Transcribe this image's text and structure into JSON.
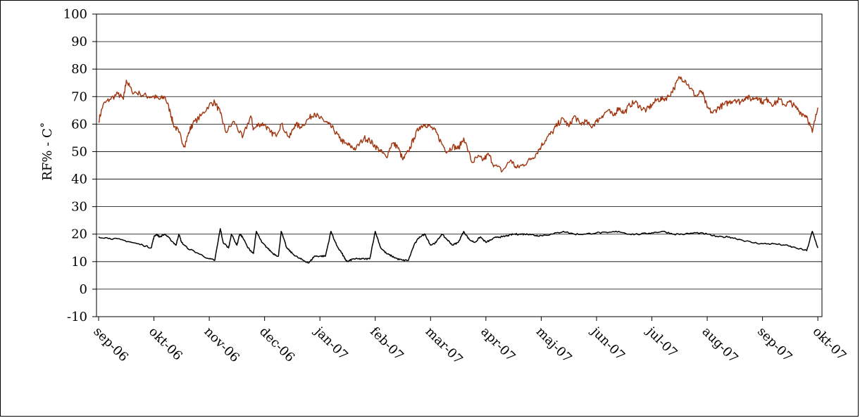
{
  "chart_data": {
    "type": "line",
    "title": "",
    "xlabel": "",
    "ylabel": "RF% - C˚",
    "ylim": [
      -10,
      100
    ],
    "yticks": [
      -10,
      0,
      10,
      20,
      30,
      40,
      50,
      60,
      70,
      80,
      90,
      100
    ],
    "grid": "horizontal",
    "legend": "none",
    "x_tick_labels": [
      "sep-06",
      "okt-06",
      "nov-06",
      "dec-06",
      "jan-07",
      "feb-07",
      "mar-07",
      "apr-07",
      "maj-07",
      "jun-07",
      "jul-07",
      "aug-07",
      "sep-07",
      "okt-07"
    ],
    "x_unit": "month index (0 = sep-06, 13 = okt-07)",
    "xlim": [
      -0.05,
      13.02
    ],
    "series": [
      {
        "color": "#a0350f",
        "description_of_role": "relative humidity (RF%)",
        "x": [
          0.0,
          0.08,
          0.2,
          0.35,
          0.45,
          0.5,
          0.6,
          0.75,
          0.9,
          1.0,
          1.1,
          1.2,
          1.3,
          1.35,
          1.45,
          1.55,
          1.65,
          1.7,
          1.85,
          2.0,
          2.1,
          2.2,
          2.3,
          2.45,
          2.6,
          2.75,
          2.8,
          2.9,
          3.0,
          3.1,
          3.2,
          3.3,
          3.45,
          3.55,
          3.65,
          3.8,
          3.9,
          4.0,
          4.1,
          4.15,
          4.25,
          4.35,
          4.45,
          4.55,
          4.65,
          4.8,
          4.9,
          5.0,
          5.1,
          5.2,
          5.3,
          5.4,
          5.5,
          5.6,
          5.7,
          5.8,
          5.9,
          6.0,
          6.1,
          6.2,
          6.3,
          6.4,
          6.5,
          6.6,
          6.75,
          6.85,
          6.95,
          7.05,
          7.15,
          7.3,
          7.45,
          7.55,
          7.65,
          7.8,
          7.9,
          8.0,
          8.1,
          8.2,
          8.3,
          8.4,
          8.5,
          8.6,
          8.7,
          8.8,
          8.9,
          9.0,
          9.1,
          9.2,
          9.3,
          9.4,
          9.5,
          9.6,
          9.7,
          9.8,
          9.9,
          10.0,
          10.1,
          10.2,
          10.3,
          10.4,
          10.5,
          10.6,
          10.7,
          10.8,
          10.9,
          11.0,
          11.1,
          11.2,
          11.3,
          11.4,
          11.5,
          11.6,
          11.7,
          11.8,
          11.9,
          12.0,
          12.1,
          12.2,
          12.3,
          12.4,
          12.5,
          12.6,
          12.7,
          12.8,
          12.9,
          13.0
        ],
        "values": [
          61,
          67,
          69,
          71,
          69,
          76,
          72,
          71,
          70,
          70,
          69,
          70,
          64,
          60,
          57,
          52,
          58,
          60,
          63,
          67,
          68,
          64,
          57,
          61,
          55,
          63,
          58,
          60,
          60,
          57,
          56,
          60,
          55,
          60,
          59,
          62,
          64,
          62,
          61,
          60,
          58,
          55,
          53,
          52,
          51,
          55,
          54,
          52,
          50,
          48,
          53,
          52,
          47,
          50,
          55,
          59,
          60,
          59,
          57,
          53,
          50,
          52,
          51,
          55,
          46,
          48,
          47,
          49,
          45,
          43,
          47,
          44,
          45,
          47,
          49,
          52,
          55,
          57,
          60,
          62,
          59,
          63,
          60,
          61,
          59,
          61,
          63,
          65,
          63,
          66,
          64,
          67,
          68,
          66,
          65,
          67,
          69,
          69,
          70,
          73,
          77,
          76,
          73,
          70,
          72,
          66,
          64,
          66,
          67,
          68,
          69,
          68,
          70,
          69,
          70,
          68,
          69,
          67,
          69,
          67,
          68,
          66,
          64,
          63,
          57,
          66
        ]
      },
      {
        "color": "#000000",
        "description_of_role": "temperature (°C)",
        "x": [
          0.0,
          0.2,
          0.4,
          0.6,
          0.8,
          0.95,
          1.0,
          1.05,
          1.1,
          1.2,
          1.3,
          1.4,
          1.45,
          1.5,
          1.6,
          1.8,
          2.0,
          2.1,
          2.2,
          2.25,
          2.35,
          2.4,
          2.5,
          2.55,
          2.6,
          2.7,
          2.8,
          2.85,
          2.95,
          3.05,
          3.15,
          3.25,
          3.3,
          3.4,
          3.5,
          3.6,
          3.7,
          3.8,
          3.9,
          4.0,
          4.1,
          4.2,
          4.3,
          4.4,
          4.45,
          4.5,
          4.6,
          4.7,
          4.8,
          4.9,
          5.0,
          5.1,
          5.2,
          5.3,
          5.4,
          5.5,
          5.6,
          5.7,
          5.8,
          5.9,
          6.0,
          6.1,
          6.2,
          6.3,
          6.4,
          6.5,
          6.6,
          6.7,
          6.8,
          6.9,
          7.0,
          7.1,
          7.2,
          7.3,
          7.4,
          7.5,
          7.6,
          7.7,
          7.8,
          7.9,
          8.0,
          8.2,
          8.4,
          8.6,
          8.8,
          9.0,
          9.2,
          9.4,
          9.6,
          9.8,
          10.0,
          10.2,
          10.4,
          10.6,
          10.8,
          11.0,
          11.2,
          11.4,
          11.6,
          11.8,
          12.0,
          12.2,
          12.4,
          12.6,
          12.8,
          12.9,
          13.0
        ],
        "values": [
          19,
          18.5,
          18,
          17,
          16,
          15,
          19,
          20,
          19,
          20,
          18,
          16,
          20,
          17,
          15,
          13,
          11,
          10.5,
          22,
          17,
          15,
          20,
          16,
          20,
          19,
          15,
          13,
          21,
          17,
          15,
          13,
          12,
          21,
          15,
          13,
          11.5,
          10.5,
          9.5,
          12,
          12,
          12,
          21,
          16,
          13,
          11,
          10,
          11,
          11,
          11,
          11,
          21,
          15,
          13,
          12,
          11,
          10.5,
          10.5,
          16,
          19,
          20,
          16,
          17,
          20,
          18,
          16,
          17,
          21,
          18,
          17,
          19,
          17,
          18,
          19,
          19,
          19.5,
          20,
          20,
          20,
          20,
          19.5,
          19.5,
          20,
          21,
          20,
          20,
          20.5,
          20.5,
          21,
          20,
          20,
          20.5,
          21,
          20,
          20,
          20.5,
          20,
          19,
          19,
          18,
          17,
          16.5,
          16.5,
          16,
          15,
          14,
          21,
          15
        ]
      }
    ]
  }
}
